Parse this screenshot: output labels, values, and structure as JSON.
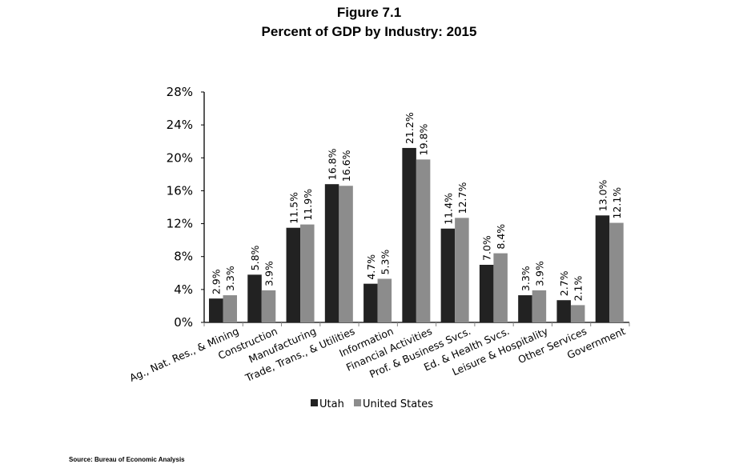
{
  "chart_data": {
    "type": "bar",
    "title": "Figure 7.1",
    "subtitle": "Percent of GDP by Industry: 2015",
    "xlabel": "",
    "ylabel": "",
    "ylim": [
      0,
      28
    ],
    "yticks": [
      0,
      4,
      8,
      12,
      16,
      20,
      24,
      28
    ],
    "ytick_labels": [
      "0%",
      "4%",
      "8%",
      "12%",
      "16%",
      "20%",
      "24%",
      "28%"
    ],
    "grid": false,
    "legend_position": "bottom-center",
    "categories": [
      "Ag., Nat. Res., & Mining",
      "Construction",
      "Manufacturing",
      "Trade, Trans., & Utilities",
      "Information",
      "Financial Activities",
      "Prof. & Business Svcs.",
      "Ed. & Health Svcs.",
      "Leisure & Hospitality",
      "Other Services",
      "Government"
    ],
    "series": [
      {
        "name": "Utah",
        "color": "#222222",
        "values": [
          2.9,
          5.8,
          11.5,
          16.8,
          4.7,
          21.2,
          11.4,
          7.0,
          3.3,
          2.7,
          13.0
        ],
        "labels": [
          "2.9%",
          "5.8%",
          "11.5%",
          "16.8%",
          "4.7%",
          "21.2%",
          "11.4%",
          "7.0%",
          "3.3%",
          "2.7%",
          "13.0%"
        ]
      },
      {
        "name": "United States",
        "color": "#8c8c8c",
        "values": [
          3.3,
          3.9,
          11.9,
          16.6,
          5.3,
          19.8,
          12.7,
          8.4,
          3.9,
          2.1,
          12.1
        ],
        "labels": [
          "3.3%",
          "3.9%",
          "11.9%",
          "16.6%",
          "5.3%",
          "19.8%",
          "12.7%",
          "8.4%",
          "3.9%",
          "2.1%",
          "12.1%"
        ]
      }
    ],
    "source": "Source: Bureau of Economic Analysis"
  }
}
